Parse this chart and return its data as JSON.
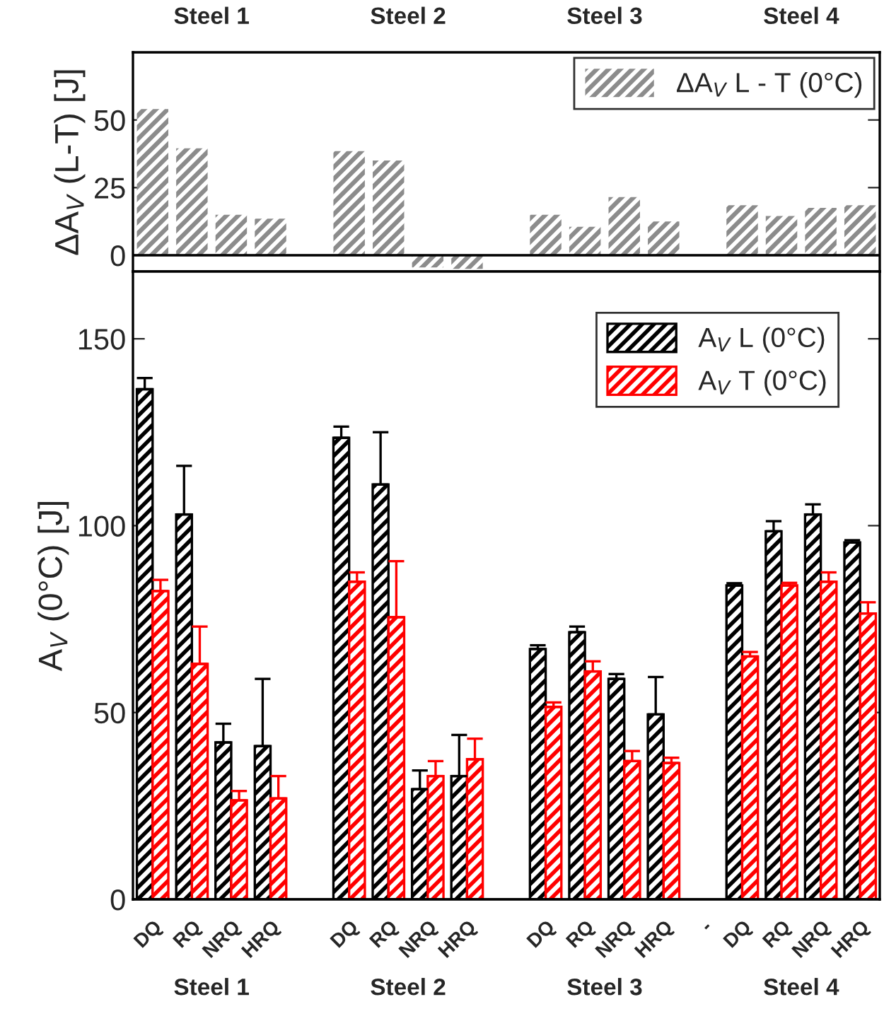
{
  "chart_data": [
    {
      "type": "bar",
      "ylabel": "ΔA$_{V}$ (L-T) [J]",
      "categories": [
        null,
        null,
        null,
        null,
        null,
        null,
        null,
        null,
        null,
        null,
        null,
        null,
        null,
        null,
        null,
        null,
        null,
        null,
        null
      ],
      "series": [
        {
          "name": "ΔA$_{V}$ L - T (0°C)",
          "color": "#8c8c8c",
          "values": [
            54,
            39.5,
            15,
            13.5,
            null,
            38.5,
            35,
            -4.5,
            -5,
            null,
            15,
            10.5,
            21.5,
            12.5,
            null,
            18.5,
            14.5,
            17.5,
            18.5
          ]
        }
      ],
      "ylim": [
        -6,
        75
      ],
      "yticks": [
        0,
        25,
        50
      ],
      "tick_labels": "y",
      "legend": "top right",
      "annotations": [
        "Steel 1",
        "Steel 2",
        "Steel 3",
        "Steel 4"
      ]
    },
    {
      "type": "bar",
      "ylabel": "A$_{V}$ (0°C) [J]",
      "categories": [
        "DQ",
        "RQ",
        "NRQ",
        "HRQ",
        null,
        "DQ",
        "RQ",
        "NRQ",
        "HRQ",
        null,
        "DQ",
        "RQ",
        "NRQ",
        "HRQ",
        "-",
        "DQ",
        "RQ",
        "NRQ",
        "HRQ"
      ],
      "series": [
        {
          "name": "A$_{V}$ L (0°C)",
          "color": "#000000",
          "values": [
            136.5,
            103,
            42,
            41,
            null,
            123.5,
            111,
            29.5,
            33,
            null,
            67,
            71.5,
            59,
            49.5,
            null,
            84,
            98.5,
            103,
            95.5
          ],
          "errors": [
            3,
            13,
            5,
            18,
            null,
            3,
            14,
            5,
            11,
            null,
            1,
            1.5,
            1.3,
            10,
            null,
            0.6,
            2.7,
            2.7,
            0.6
          ]
        },
        {
          "name": "A$_{V}$ T (0°C)",
          "color": "#ff0000",
          "values": [
            82.5,
            63,
            26.5,
            27,
            null,
            85,
            75.5,
            33,
            37.5,
            null,
            51.5,
            61,
            37,
            36.5,
            null,
            65,
            84,
            85,
            76.5
          ],
          "errors": [
            3,
            10,
            2.5,
            6,
            null,
            2.5,
            15,
            4,
            5.5,
            null,
            1.2,
            2.7,
            2.7,
            1.4,
            null,
            1.2,
            0.7,
            2.5,
            3
          ]
        }
      ],
      "ylim": [
        0,
        168
      ],
      "yticks": [
        0,
        50,
        100,
        150
      ],
      "legend": "top right",
      "annotations": [
        "Steel 1",
        "Steel 2",
        "Steel 3",
        "Steel 4"
      ]
    }
  ]
}
